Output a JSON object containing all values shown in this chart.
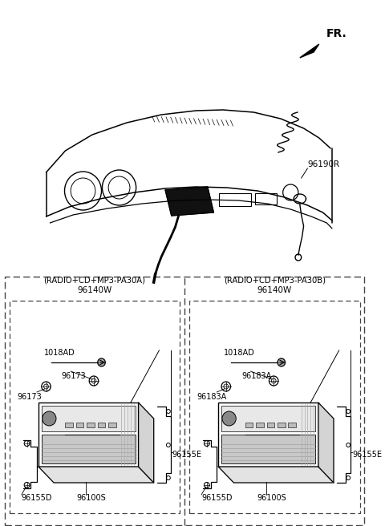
{
  "bg_color": "#ffffff",
  "line_color": "#000000",
  "dash_color": "#444444",
  "fr_label": "FR.",
  "part_96190R": "96190R",
  "left_box_label1": "(RADIO+CD+MP3-PA30A)",
  "left_box_label2": "96140W",
  "right_box_label1": "(RADIO+CD+MP3-PA30B)",
  "right_box_label2": "96140W",
  "left_parts": {
    "top_bracket": "96155D",
    "main_unit": "96100S",
    "right_bracket": "96155E",
    "screw_left": "96173",
    "screw_bottom": "96173",
    "connector": "1018AD"
  },
  "right_parts": {
    "top_bracket": "96155D",
    "main_unit": "96100S",
    "right_bracket": "96155E",
    "screw_left": "96183A",
    "screw_bottom": "96183A",
    "connector": "1018AD"
  },
  "fig_width": 4.8,
  "fig_height": 6.56,
  "dpi": 100
}
